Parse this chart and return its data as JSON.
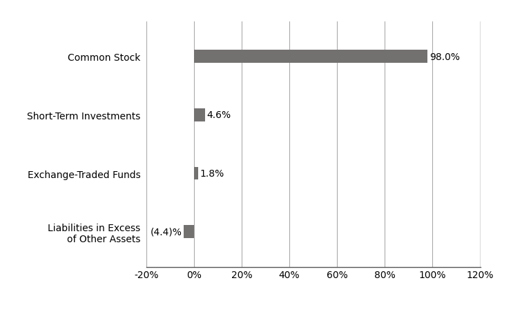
{
  "categories": [
    "Common Stock",
    "Short-Term Investments",
    "Exchange-Traded Funds",
    "Liabilities in Excess\nof Other Assets"
  ],
  "values": [
    98.0,
    4.6,
    1.8,
    -4.4
  ],
  "labels": [
    "98.0%",
    "4.6%",
    "1.8%",
    "(4.4)%"
  ],
  "bar_color": "#737070",
  "xlim": [
    -20,
    120
  ],
  "xticks": [
    -20,
    0,
    20,
    40,
    60,
    80,
    100,
    120
  ],
  "xtick_labels": [
    "-20%",
    "0%",
    "20%",
    "40%",
    "60%",
    "80%",
    "100%",
    "120%"
  ],
  "bar_height": 0.22,
  "background_color": "#ffffff",
  "label_fontsize": 10,
  "tick_fontsize": 10,
  "ytick_fontsize": 10,
  "grid_color": "#aaaaaa",
  "grid_linewidth": 0.8,
  "spine_color": "#555555"
}
